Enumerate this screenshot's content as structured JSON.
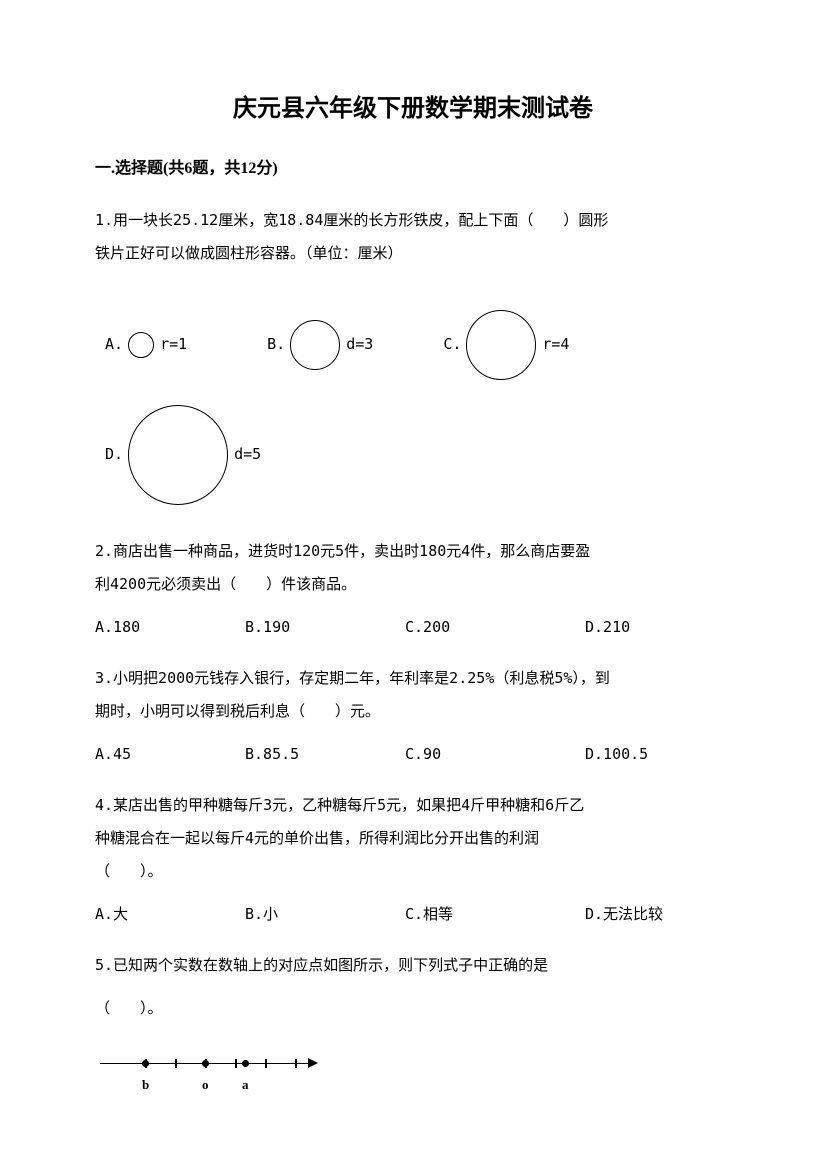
{
  "title": "庆元县六年级下册数学期末测试卷",
  "section1": {
    "header": "一.选择题(共6题，共12分)"
  },
  "q1": {
    "text_line1": "1.用一块长25.12厘米，宽18.84厘米的长方形铁皮，配上下面（　　）圆形",
    "text_line2": "铁片正好可以做成圆柱形容器。（单位：厘米）",
    "choices": {
      "a": {
        "label": "A.",
        "text": "r=1",
        "circle_size": 26
      },
      "b": {
        "label": "B.",
        "text": "d=3",
        "circle_size": 50
      },
      "c": {
        "label": "C.",
        "text": "r=4",
        "circle_size": 70
      },
      "d": {
        "label": "D.",
        "text": "d=5",
        "circle_size": 100
      }
    }
  },
  "q2": {
    "text_line1": "2.商店出售一种商品，进货时120元5件，卖出时180元4件，那么商店要盈",
    "text_line2": "利4200元必须卖出（　　）件该商品。",
    "options": {
      "a": "A.180",
      "b": "B.190",
      "c": "C.200",
      "d": "D.210"
    }
  },
  "q3": {
    "text_line1": "3.小明把2000元钱存入银行，存定期二年，年利率是2.25%（利息税5%），到",
    "text_line2": "期时，小明可以得到税后利息（　　）元。",
    "options": {
      "a": "A.45",
      "b": "B.85.5",
      "c": "C.90",
      "d": "D.100.5"
    }
  },
  "q4": {
    "text_line1": "4.某店出售的甲种糖每斤3元，乙种糖每斤5元，如果把4斤甲种糖和6斤乙",
    "text_line2": "种糖混合在一起以每斤4元的单价出售，所得利润比分开出售的利润",
    "text_line3": "（　　）。",
    "options": {
      "a": "A.大",
      "b": "B.小",
      "c": "C.相等",
      "d": "D.无法比较"
    }
  },
  "q5": {
    "text_line1": "5.已知两个实数在数轴上的对应点如图所示，则下列式子中正确的是",
    "text_line2": "（　　）。",
    "number_line": {
      "tick_positions": [
        45,
        75,
        105,
        135,
        165,
        195
      ],
      "dot_b": {
        "pos": 42,
        "label": "b"
      },
      "dot_o": {
        "pos": 102,
        "label": "o"
      },
      "dot_a": {
        "pos": 142,
        "label": "a"
      }
    }
  }
}
